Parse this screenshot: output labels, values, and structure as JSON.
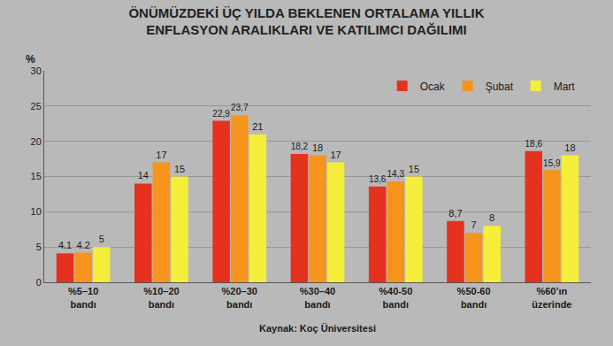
{
  "chart_data": {
    "type": "bar",
    "title": "ÖNÜMÜZDEKİ ÜÇ YILDA BEKLENEN ORTALAMA YILLIK ENFLASYON ARALIKLARI VE KATILIMCI DAĞILIMI",
    "ylabel": "%",
    "source": "Kaynak: Koç Üniversitesi",
    "categories": [
      "%5–10 bandı",
      "%10–20 bandı",
      "%20–30 bandı",
      "%30–40 bandı",
      "%40-50 bandı",
      "%50-60 bandı",
      "%60’ın üzerinde"
    ],
    "series": [
      {
        "name": "Ocak",
        "color": "#e5321f",
        "values": [
          4.1,
          14,
          22.9,
          18.2,
          13.6,
          8.7,
          18.6
        ],
        "value_labels": [
          "4.1",
          "14",
          "22,9",
          "18,2",
          "13,6",
          "8,7",
          "18,6"
        ]
      },
      {
        "name": "Şubat",
        "color": "#f7941d",
        "values": [
          4.2,
          17,
          23.7,
          18,
          14.3,
          7,
          15.9
        ],
        "value_labels": [
          "4.2",
          "17",
          "23,7",
          "18",
          "14,3",
          "7",
          "15,9"
        ]
      },
      {
        "name": "Mart",
        "color": "#f5ee3a",
        "values": [
          5,
          15,
          21,
          17,
          15,
          8,
          18
        ],
        "value_labels": [
          "5",
          "15",
          "21",
          "17",
          "15",
          "8",
          "18"
        ]
      }
    ],
    "ylim": [
      0,
      30
    ],
    "yticks": [
      0,
      5,
      10,
      15,
      20,
      25,
      30
    ],
    "grid": true,
    "legend": "upper right",
    "data_labels": true
  }
}
